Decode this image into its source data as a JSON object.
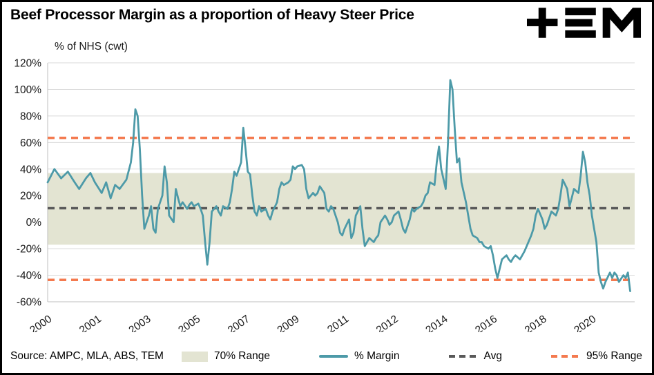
{
  "source_note": "Source: AMPC, MLA, ABS, TEM",
  "colors": {
    "margin_line": "#4d9aa8",
    "avg_line": "#595959",
    "range95_line": "#f47a4f",
    "band_fill": "#e3e4d2",
    "gridline": "#d9d9d9",
    "axis": "#bfbfbf",
    "text": "#1a1a1a"
  },
  "icons": {
    "logo": "tem-logo"
  },
  "legend": {
    "items": [
      {
        "label": "70% Range",
        "type": "band"
      },
      {
        "label": "% Margin",
        "type": "line"
      },
      {
        "label": "Avg",
        "type": "dash-dark"
      },
      {
        "label": "95% Range",
        "type": "dash-orange"
      }
    ]
  },
  "chart_data": {
    "type": "line",
    "title": "Beef Processor Margin as a proportion of Heavy Steer Price",
    "ylabel": "% of NHS (cwt)",
    "xlabel": "",
    "ylim": [
      -60,
      120
    ],
    "y_tick_step": 20,
    "y_tick_suffix": "%",
    "grid": true,
    "legend_position": "bottom",
    "x_tick_labels": [
      "2000",
      "2001",
      "2003",
      "2005",
      "2007",
      "2009",
      "2011",
      "2012",
      "2014",
      "2016",
      "2018",
      "2020"
    ],
    "x_tick_month_indices": [
      0,
      22,
      44,
      66,
      88,
      110,
      132,
      154,
      176,
      198,
      220,
      242
    ],
    "x_total_months": 261,
    "bands": [
      {
        "id": "70-range",
        "name": "70% Range",
        "from": -17,
        "to": 37,
        "color": "#e3e4d2"
      }
    ],
    "hlines": [
      {
        "id": "avg",
        "name": "Avg",
        "value": 10.5,
        "color": "#595959"
      },
      {
        "id": "95-upper",
        "name": "95% Range (upper)",
        "value": 63.5,
        "color": "#f47a4f"
      },
      {
        "id": "95-lower",
        "name": "95% Range (lower)",
        "value": -43.5,
        "color": "#f47a4f"
      }
    ],
    "series": [
      {
        "id": "margin",
        "name": "% Margin",
        "color": "#4d9aa8",
        "x_unit": "months since Jan 2000",
        "points": [
          [
            0,
            30
          ],
          [
            3,
            40
          ],
          [
            6,
            33
          ],
          [
            9,
            38
          ],
          [
            12,
            30
          ],
          [
            14,
            25
          ],
          [
            17,
            33
          ],
          [
            19,
            37
          ],
          [
            21,
            30
          ],
          [
            24,
            22
          ],
          [
            26,
            30
          ],
          [
            28,
            18
          ],
          [
            30,
            28
          ],
          [
            32,
            25
          ],
          [
            35,
            32
          ],
          [
            37,
            45
          ],
          [
            38,
            60
          ],
          [
            39,
            85
          ],
          [
            40,
            80
          ],
          [
            41,
            55
          ],
          [
            42,
            20
          ],
          [
            43,
            -5
          ],
          [
            45,
            5
          ],
          [
            46,
            12
          ],
          [
            47,
            -5
          ],
          [
            48,
            -8
          ],
          [
            49,
            10
          ],
          [
            51,
            20
          ],
          [
            52,
            42
          ],
          [
            53,
            30
          ],
          [
            54,
            5
          ],
          [
            56,
            0
          ],
          [
            57,
            25
          ],
          [
            58,
            18
          ],
          [
            59,
            12
          ],
          [
            60,
            15
          ],
          [
            62,
            10
          ],
          [
            63,
            13
          ],
          [
            64,
            15
          ],
          [
            65,
            12
          ],
          [
            67,
            14
          ],
          [
            68,
            10
          ],
          [
            69,
            5
          ],
          [
            70,
            -15
          ],
          [
            71,
            -32
          ],
          [
            72,
            -15
          ],
          [
            73,
            8
          ],
          [
            75,
            12
          ],
          [
            76,
            8
          ],
          [
            77,
            5
          ],
          [
            78,
            12
          ],
          [
            80,
            10
          ],
          [
            81,
            15
          ],
          [
            82,
            25
          ],
          [
            83,
            38
          ],
          [
            84,
            35
          ],
          [
            86,
            45
          ],
          [
            87,
            71
          ],
          [
            88,
            55
          ],
          [
            89,
            38
          ],
          [
            90,
            36
          ],
          [
            91,
            20
          ],
          [
            92,
            8
          ],
          [
            93,
            5
          ],
          [
            94,
            12
          ],
          [
            95,
            8
          ],
          [
            97,
            10
          ],
          [
            98,
            5
          ],
          [
            99,
            2
          ],
          [
            100,
            8
          ],
          [
            102,
            15
          ],
          [
            103,
            25
          ],
          [
            104,
            30
          ],
          [
            105,
            28
          ],
          [
            107,
            30
          ],
          [
            108,
            32
          ],
          [
            109,
            42
          ],
          [
            110,
            40
          ],
          [
            111,
            42
          ],
          [
            113,
            43
          ],
          [
            114,
            40
          ],
          [
            115,
            25
          ],
          [
            116,
            18
          ],
          [
            118,
            22
          ],
          [
            119,
            20
          ],
          [
            120,
            22
          ],
          [
            121,
            27
          ],
          [
            123,
            22
          ],
          [
            124,
            10
          ],
          [
            125,
            8
          ],
          [
            126,
            12
          ],
          [
            127,
            10
          ],
          [
            129,
            0
          ],
          [
            130,
            -8
          ],
          [
            131,
            -10
          ],
          [
            132,
            -5
          ],
          [
            134,
            2
          ],
          [
            135,
            -12
          ],
          [
            136,
            -8
          ],
          [
            137,
            5
          ],
          [
            139,
            12
          ],
          [
            140,
            -5
          ],
          [
            141,
            -18
          ],
          [
            142,
            -15
          ],
          [
            143,
            -12
          ],
          [
            145,
            -15
          ],
          [
            146,
            -12
          ],
          [
            147,
            -10
          ],
          [
            148,
            0
          ],
          [
            150,
            5
          ],
          [
            151,
            2
          ],
          [
            152,
            -2
          ],
          [
            153,
            0
          ],
          [
            154,
            5
          ],
          [
            156,
            8
          ],
          [
            157,
            2
          ],
          [
            158,
            -5
          ],
          [
            159,
            -8
          ],
          [
            161,
            2
          ],
          [
            162,
            10
          ],
          [
            163,
            8
          ],
          [
            164,
            10
          ],
          [
            166,
            12
          ],
          [
            167,
            15
          ],
          [
            168,
            20
          ],
          [
            169,
            22
          ],
          [
            170,
            30
          ],
          [
            172,
            28
          ],
          [
            173,
            45
          ],
          [
            174,
            57
          ],
          [
            175,
            40
          ],
          [
            177,
            25
          ],
          [
            178,
            60
          ],
          [
            179,
            107
          ],
          [
            180,
            100
          ],
          [
            181,
            70
          ],
          [
            182,
            45
          ],
          [
            183,
            48
          ],
          [
            184,
            30
          ],
          [
            186,
            15
          ],
          [
            187,
            5
          ],
          [
            188,
            -5
          ],
          [
            189,
            -10
          ],
          [
            191,
            -12
          ],
          [
            192,
            -15
          ],
          [
            193,
            -15
          ],
          [
            194,
            -18
          ],
          [
            196,
            -20
          ],
          [
            197,
            -18
          ],
          [
            198,
            -25
          ],
          [
            199,
            -35
          ],
          [
            200,
            -42
          ],
          [
            201,
            -35
          ],
          [
            202,
            -28
          ],
          [
            204,
            -25
          ],
          [
            205,
            -28
          ],
          [
            206,
            -30
          ],
          [
            207,
            -27
          ],
          [
            208,
            -25
          ],
          [
            210,
            -28
          ],
          [
            211,
            -25
          ],
          [
            212,
            -22
          ],
          [
            213,
            -18
          ],
          [
            215,
            -10
          ],
          [
            216,
            -5
          ],
          [
            217,
            5
          ],
          [
            218,
            10
          ],
          [
            220,
            2
          ],
          [
            221,
            -5
          ],
          [
            222,
            -2
          ],
          [
            223,
            3
          ],
          [
            224,
            8
          ],
          [
            226,
            5
          ],
          [
            227,
            10
          ],
          [
            228,
            20
          ],
          [
            229,
            32
          ],
          [
            231,
            25
          ],
          [
            232,
            12
          ],
          [
            233,
            18
          ],
          [
            234,
            25
          ],
          [
            236,
            22
          ],
          [
            237,
            35
          ],
          [
            238,
            53
          ],
          [
            239,
            45
          ],
          [
            240,
            30
          ],
          [
            241,
            20
          ],
          [
            242,
            5
          ],
          [
            244,
            -15
          ],
          [
            245,
            -38
          ],
          [
            246,
            -45
          ],
          [
            247,
            -50
          ],
          [
            248,
            -45
          ],
          [
            250,
            -38
          ],
          [
            251,
            -42
          ],
          [
            252,
            -38
          ],
          [
            253,
            -40
          ],
          [
            254,
            -45
          ],
          [
            256,
            -40
          ],
          [
            257,
            -42
          ],
          [
            258,
            -38
          ],
          [
            259,
            -52
          ]
        ]
      }
    ]
  }
}
